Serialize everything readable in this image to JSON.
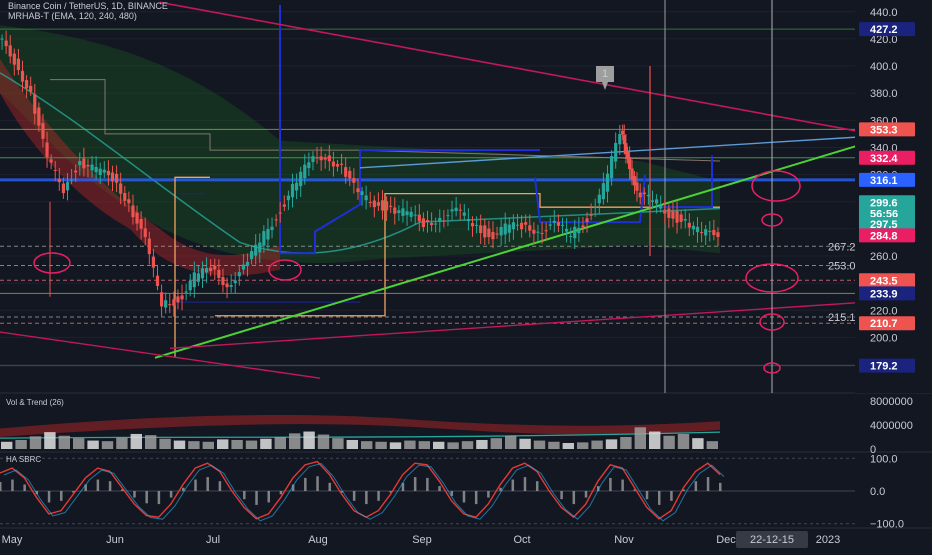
{
  "header": {
    "title": "Binance Coin / TetherUS, 1D, BINANCE",
    "subtitle": "MRHAB-T (EMA, 120, 240, 480)"
  },
  "colors": {
    "background": "#131722",
    "up": "#26a69a",
    "down": "#ef5350",
    "trend_line": "#4cd137",
    "resistance_line": "#c2185b",
    "blue_line": "#1e2fd6",
    "marker": "#e91e63"
  },
  "indicators": {
    "volume_label": "Vol & Trend (26)",
    "oscillator_label": "HA SBRC"
  },
  "chart_data": [
    {
      "type": "candlestick",
      "y_axis": {
        "ticks": [
          440,
          420,
          400,
          380,
          360,
          340,
          320,
          300,
          280,
          260,
          240,
          220,
          200,
          180
        ],
        "ylim": [
          176,
          445
        ]
      },
      "x_axis": {
        "ticks": [
          "May",
          "Jun",
          "Jul",
          "Aug",
          "Sep",
          "Oct",
          "Nov",
          "Dec",
          "2023"
        ],
        "cursor_date": "22-12-15"
      },
      "price_tags": [
        {
          "value": "427.2",
          "price": 427.2,
          "color": "#1a237e"
        },
        {
          "value": "353.3",
          "price": 353.3,
          "color": "#ef5350"
        },
        {
          "value": "332.4",
          "price": 332.4,
          "color": "#e91e63"
        },
        {
          "value": "316.1",
          "price": 316.1,
          "color": "#2962ff"
        },
        {
          "value": "299.6",
          "price": 299.6,
          "color": "#26a69a"
        },
        {
          "value": "56:56",
          "price": 291.4,
          "color": "#26a69a"
        },
        {
          "value": "297.5",
          "price": 283.6,
          "color": "#26a69a"
        },
        {
          "value": "284.8",
          "price": 275.2,
          "color": "#e91e63"
        },
        {
          "value": "243.5",
          "price": 242.1,
          "color": "#ef5350"
        },
        {
          "value": "233.9",
          "price": 232.5,
          "color": "#1a237e"
        },
        {
          "value": "210.7",
          "price": 210.5,
          "color": "#ef5350"
        },
        {
          "value": "179.2",
          "price": 179.2,
          "color": "#1a237e"
        }
      ],
      "level_labels": [
        {
          "value": "267.2",
          "price": 267.2
        },
        {
          "value": "253.0",
          "price": 253.0
        },
        {
          "value": "215.1",
          "price": 215.1
        }
      ],
      "annotation": "1",
      "price_path": [
        [
          0,
          420
        ],
        [
          5,
          405
        ],
        [
          10,
          380
        ],
        [
          15,
          330
        ],
        [
          20,
          310
        ],
        [
          25,
          330
        ],
        [
          30,
          322
        ],
        [
          35,
          318
        ],
        [
          40,
          300
        ],
        [
          45,
          270
        ],
        [
          50,
          225
        ],
        [
          55,
          228
        ],
        [
          60,
          244
        ],
        [
          65,
          250
        ],
        [
          70,
          240
        ],
        [
          75,
          250
        ],
        [
          80,
          270
        ],
        [
          85,
          290
        ],
        [
          90,
          310
        ],
        [
          95,
          328
        ],
        [
          100,
          335
        ],
        [
          105,
          325
        ],
        [
          110,
          305
        ],
        [
          115,
          300
        ],
        [
          120,
          295
        ],
        [
          125,
          290
        ],
        [
          130,
          285
        ],
        [
          135,
          288
        ],
        [
          140,
          292
        ],
        [
          145,
          285
        ],
        [
          150,
          275
        ],
        [
          155,
          280
        ],
        [
          160,
          282
        ],
        [
          165,
          280
        ],
        [
          170,
          282
        ],
        [
          175,
          276
        ],
        [
          180,
          288
        ],
        [
          185,
          310
        ],
        [
          190,
          350
        ],
        [
          192,
          335
        ],
        [
          195,
          305
        ],
        [
          200,
          300
        ],
        [
          205,
          292
        ],
        [
          210,
          285
        ],
        [
          215,
          275
        ],
        [
          220,
          278
        ]
      ]
    },
    {
      "type": "bar",
      "name": "Vol & Trend (26)",
      "y_axis": {
        "ticks": [
          8000000,
          4000000,
          0
        ],
        "labels": [
          "8000000",
          "4000000",
          "0"
        ],
        "ylim": [
          0,
          8800000
        ]
      },
      "values": [
        1200000,
        1500000,
        2100000,
        2800000,
        2200000,
        1800000,
        1400000,
        1300000,
        1900000,
        2500000,
        2300000,
        1700000,
        1400000,
        1300000,
        1200000,
        1600000,
        1500000,
        1400000,
        1700000,
        2000000,
        2600000,
        2900000,
        2400000,
        1800000,
        1500000,
        1300000,
        1200000,
        1100000,
        1400000,
        1300000,
        1200000,
        1100000,
        1300000,
        1500000,
        1800000,
        2200000,
        1700000,
        1400000,
        1200000,
        1000000,
        1100000,
        1400000,
        1600000,
        2000000,
        3600000,
        2900000,
        2200000,
        2500000,
        1800000,
        1300000
      ]
    },
    {
      "type": "line",
      "name": "HA SBRC",
      "y_axis": {
        "ticks": [
          100,
          0,
          -100
        ],
        "labels": [
          "100.0",
          "0.0",
          "−100.0"
        ],
        "ylim": [
          -110,
          110
        ]
      },
      "values": [
        55,
        70,
        40,
        -20,
        -70,
        -60,
        -10,
        40,
        70,
        60,
        10,
        -40,
        -75,
        -80,
        -40,
        20,
        70,
        85,
        60,
        0,
        -50,
        -85,
        -70,
        -20,
        40,
        80,
        90,
        50,
        -10,
        -60,
        -80,
        -60,
        -10,
        50,
        85,
        80,
        30,
        -30,
        -70,
        -80,
        -40,
        20,
        70,
        85,
        60,
        0,
        -50,
        -80,
        -40,
        30,
        80,
        70,
        10,
        -50,
        -85,
        -60,
        10,
        60,
        85,
        50
      ]
    }
  ]
}
